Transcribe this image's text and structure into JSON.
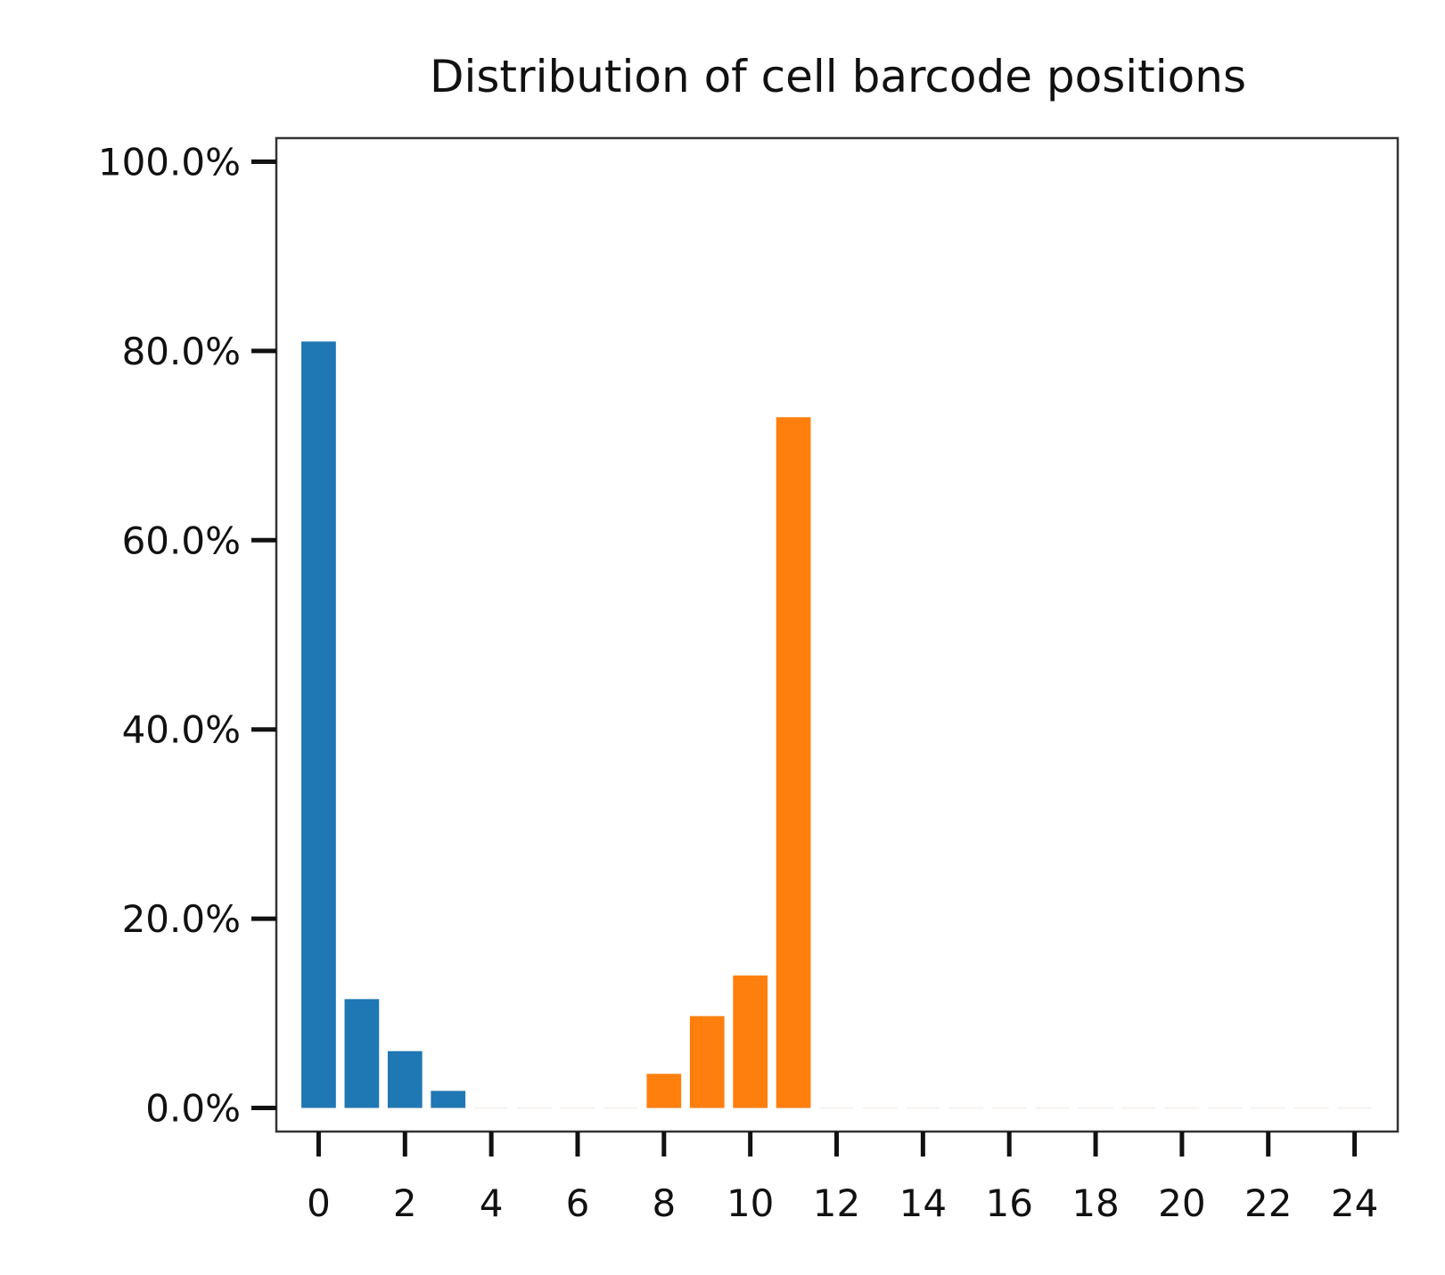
{
  "chart_data": {
    "type": "bar",
    "title": "Distribution of cell barcode positions",
    "xlabel": "",
    "ylabel": "",
    "x": [
      0,
      1,
      2,
      3,
      4,
      5,
      6,
      7,
      8,
      9,
      10,
      11,
      12,
      13,
      14,
      15,
      16,
      17,
      18,
      19,
      20,
      21,
      22,
      23,
      24
    ],
    "series": [
      {
        "color": "#1f77b4",
        "values": [
          81.0,
          11.5,
          6.0,
          1.8,
          0,
          0,
          0,
          0,
          0,
          0,
          0,
          0,
          0,
          0,
          0,
          0,
          0,
          0,
          0,
          0,
          0,
          0,
          0,
          0,
          0
        ]
      },
      {
        "color": "#ff7f0e",
        "values": [
          0,
          0,
          0,
          0,
          0,
          0,
          0,
          0,
          3.6,
          9.7,
          14.0,
          73.0,
          0,
          0,
          0,
          0,
          0,
          0,
          0,
          0,
          0,
          0,
          0,
          0,
          0
        ]
      }
    ],
    "xlim": [
      -0.98,
      25.0
    ],
    "ylim": [
      -2.5,
      102.5
    ],
    "xticks": [
      0,
      2,
      4,
      6,
      8,
      10,
      12,
      14,
      16,
      18,
      20,
      22,
      24
    ],
    "xtick_labels": [
      "0",
      "2",
      "4",
      "6",
      "8",
      "10",
      "12",
      "14",
      "16",
      "18",
      "20",
      "22",
      "24"
    ],
    "yticks": [
      0,
      20,
      40,
      60,
      80,
      100
    ],
    "ytick_labels": [
      "0.0%",
      "20.0%",
      "40.0%",
      "60.0%",
      "80.0%",
      "100.0%"
    ],
    "grid": false,
    "legend": "none"
  }
}
